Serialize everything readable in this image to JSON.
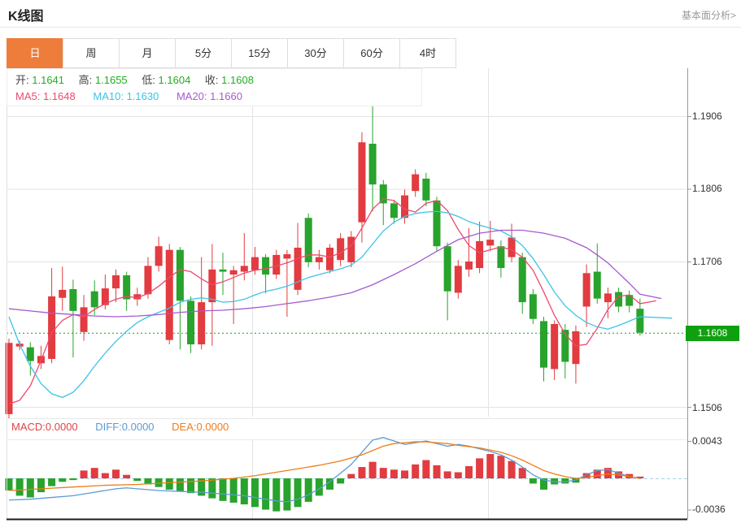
{
  "header": {
    "title": "K线图",
    "link": "基本面分析>"
  },
  "tabs": {
    "items": [
      {
        "label": "日",
        "active": true
      },
      {
        "label": "周",
        "active": false
      },
      {
        "label": "月",
        "active": false
      },
      {
        "label": "5分",
        "active": false
      },
      {
        "label": "15分",
        "active": false
      },
      {
        "label": "30分",
        "active": false
      },
      {
        "label": "60分",
        "active": false
      },
      {
        "label": "4时",
        "active": false
      }
    ]
  },
  "legend": {
    "open_label": "开:",
    "open": "1.1641",
    "high_label": "高:",
    "high": "1.1655",
    "low_label": "低:",
    "low": "1.1604",
    "close_label": "收:",
    "close": "1.1608",
    "ma5_label": "MA5:",
    "ma5": "1.1648",
    "ma10_label": "MA10:",
    "ma10": "1.1630",
    "ma20_label": "MA20:",
    "ma20": "1.1660"
  },
  "macd_legend": {
    "macd": "MACD:0.0000",
    "diff": "DIFF:0.0000",
    "dea": "DEA:0.0000"
  },
  "y_axis": {
    "price_labels": [
      "1.1906",
      "1.1806",
      "1.1706",
      "1.1506"
    ],
    "price_tag": "1.1608",
    "macd_labels": [
      "0.0043",
      "-0.0036"
    ]
  },
  "colors": {
    "up": "#e23b40",
    "down": "#28a32c",
    "tag": "#0fa00f",
    "active_tab": "#ee7d3b",
    "ma5": "#ed4a6e",
    "ma10": "#3ec3e6",
    "ma20": "#a55ad0",
    "diff": "#5b9bd5",
    "dea": "#ef7d17",
    "zero_dash": "#a8d4ea",
    "close_dotted": "#1ca41c"
  },
  "chart_data": {
    "type": "candlestick+macd",
    "title": "K线图",
    "legend_position": "top-left",
    "grid": true,
    "price_axis": {
      "tick_labels": [
        1.1906,
        1.1806,
        1.1706,
        1.1506
      ],
      "last_price": 1.1608,
      "ohlc": {
        "open": 1.1641,
        "high": 1.1655,
        "low": 1.1604,
        "close": 1.1608
      }
    },
    "macd_axis": {
      "max": 0.0043,
      "min": -0.0036,
      "macd": 0.0,
      "diff": 0.0,
      "dea": 0.0
    },
    "candles_ohlc": [
      [
        1.1496,
        1.16,
        1.149,
        1.1594
      ],
      [
        1.1589,
        1.1597,
        1.1584,
        1.1593
      ],
      [
        1.1588,
        1.1595,
        1.1549,
        1.1569
      ],
      [
        1.1566,
        1.159,
        1.1558,
        1.1576
      ],
      [
        1.1572,
        1.1697,
        1.1566,
        1.1658
      ],
      [
        1.1656,
        1.1699,
        1.1638,
        1.1667
      ],
      [
        1.1668,
        1.1681,
        1.1574,
        1.1638
      ],
      [
        1.1609,
        1.166,
        1.1597,
        1.1643
      ],
      [
        1.1665,
        1.168,
        1.1632,
        1.1643
      ],
      [
        1.1646,
        1.1688,
        1.164,
        1.1669
      ],
      [
        1.1669,
        1.1695,
        1.165,
        1.1687
      ],
      [
        1.1687,
        1.1692,
        1.1638,
        1.1654
      ],
      [
        1.1654,
        1.167,
        1.1645,
        1.1661
      ],
      [
        1.1661,
        1.1712,
        1.1655,
        1.17
      ],
      [
        1.17,
        1.174,
        1.1692,
        1.1727
      ],
      [
        1.1598,
        1.173,
        1.1592,
        1.1722
      ],
      [
        1.1722,
        1.1726,
        1.1585,
        1.1652
      ],
      [
        1.1652,
        1.1658,
        1.158,
        1.1592
      ],
      [
        1.1592,
        1.1712,
        1.1585,
        1.165
      ],
      [
        1.165,
        1.173,
        1.159,
        1.1695
      ],
      [
        1.1695,
        1.1718,
        1.166,
        1.1692
      ],
      [
        1.1688,
        1.17,
        1.162,
        1.1694
      ],
      [
        1.1692,
        1.1745,
        1.168,
        1.17
      ],
      [
        1.1694,
        1.1726,
        1.1688,
        1.1712
      ],
      [
        1.1712,
        1.1716,
        1.1662,
        1.1688
      ],
      [
        1.1688,
        1.1722,
        1.1682,
        1.1715
      ],
      [
        1.171,
        1.1722,
        1.163,
        1.1716
      ],
      [
        1.1667,
        1.1759,
        1.166,
        1.1725
      ],
      [
        1.1766,
        1.1772,
        1.1698,
        1.1705
      ],
      [
        1.1705,
        1.1722,
        1.1695,
        1.1712
      ],
      [
        1.1694,
        1.173,
        1.169,
        1.1725
      ],
      [
        1.1708,
        1.1745,
        1.17,
        1.1738
      ],
      [
        1.1705,
        1.1748,
        1.1698,
        1.174
      ],
      [
        1.176,
        1.1884,
        1.1732,
        1.187
      ],
      [
        1.1868,
        1.1921,
        1.1775,
        1.1812
      ],
      [
        1.1812,
        1.1818,
        1.1756,
        1.1786
      ],
      [
        1.1786,
        1.179,
        1.1758,
        1.1766
      ],
      [
        1.1766,
        1.1805,
        1.1758,
        1.1797
      ],
      [
        1.1803,
        1.1833,
        1.1795,
        1.1826
      ],
      [
        1.182,
        1.1828,
        1.1782,
        1.179
      ],
      [
        1.179,
        1.1795,
        1.172,
        1.1727
      ],
      [
        1.1727,
        1.1732,
        1.1625,
        1.1665
      ],
      [
        1.1663,
        1.1708,
        1.1655,
        1.17
      ],
      [
        1.1695,
        1.1752,
        1.1685,
        1.1706
      ],
      [
        1.1697,
        1.1761,
        1.169,
        1.1734
      ],
      [
        1.1728,
        1.1762,
        1.172,
        1.1736
      ],
      [
        1.1727,
        1.1735,
        1.1684,
        1.1697
      ],
      [
        1.1712,
        1.1758,
        1.1705,
        1.1739
      ],
      [
        1.1712,
        1.1718,
        1.1634,
        1.165
      ],
      [
        1.1661,
        1.1668,
        1.162,
        1.1627
      ],
      [
        1.1624,
        1.163,
        1.1541,
        1.156
      ],
      [
        1.1558,
        1.1625,
        1.1543,
        1.162
      ],
      [
        1.1612,
        1.162,
        1.1545,
        1.1568
      ],
      [
        1.1565,
        1.1618,
        1.1538,
        1.161
      ],
      [
        1.1644,
        1.1702,
        1.1616,
        1.169
      ],
      [
        1.1692,
        1.1731,
        1.1648,
        1.1655
      ],
      [
        1.165,
        1.167,
        1.1628,
        1.1662
      ],
      [
        1.1664,
        1.167,
        1.1636,
        1.1644
      ],
      [
        1.166,
        1.1666,
        1.1636,
        1.1645
      ],
      [
        1.1641,
        1.1655,
        1.1604,
        1.1608
      ]
    ],
    "ma5_points": [
      [
        1,
        1.151
      ],
      [
        2,
        1.1515
      ],
      [
        3,
        1.1535
      ],
      [
        4,
        1.157
      ],
      [
        5,
        1.1608
      ],
      [
        6,
        1.1625
      ],
      [
        7,
        1.1633
      ],
      [
        8,
        1.163
      ],
      [
        9,
        1.164
      ],
      [
        10,
        1.1648
      ],
      [
        11,
        1.1654
      ],
      [
        12,
        1.1658
      ],
      [
        13,
        1.1656
      ],
      [
        14,
        1.1662
      ],
      [
        15,
        1.1672
      ],
      [
        16,
        1.1684
      ],
      [
        17,
        1.1695
      ],
      [
        18,
        1.1692
      ],
      [
        19,
        1.1682
      ],
      [
        20,
        1.1674
      ],
      [
        21,
        1.1678
      ],
      [
        22,
        1.1684
      ],
      [
        23,
        1.169
      ],
      [
        24,
        1.1694
      ],
      [
        25,
        1.1696
      ],
      [
        26,
        1.17
      ],
      [
        27,
        1.1704
      ],
      [
        28,
        1.171
      ],
      [
        29,
        1.1715
      ],
      [
        30,
        1.1715
      ],
      [
        31,
        1.1712
      ],
      [
        32,
        1.1718
      ],
      [
        33,
        1.1728
      ],
      [
        34,
        1.1752
      ],
      [
        35,
        1.1778
      ],
      [
        36,
        1.1792
      ],
      [
        37,
        1.179
      ],
      [
        38,
        1.1778
      ],
      [
        39,
        1.1774
      ],
      [
        40,
        1.1786
      ],
      [
        41,
        1.179
      ],
      [
        42,
        1.1776
      ],
      [
        43,
        1.175
      ],
      [
        44,
        1.1728
      ],
      [
        45,
        1.1718
      ],
      [
        46,
        1.1722
      ],
      [
        47,
        1.1726
      ],
      [
        48,
        1.1722
      ],
      [
        49,
        1.1712
      ],
      [
        50,
        1.1694
      ],
      [
        51,
        1.1664
      ],
      [
        52,
        1.1632
      ],
      [
        53,
        1.1606
      ],
      [
        54,
        1.159
      ],
      [
        55,
        1.1592
      ],
      [
        56,
        1.1614
      ],
      [
        57,
        1.164
      ],
      [
        58,
        1.1658
      ],
      [
        59,
        1.166
      ],
      [
        60,
        1.1648
      ],
      [
        61.5,
        1.1652
      ]
    ],
    "ma10_points": [
      [
        1,
        1.163
      ],
      [
        2,
        1.1592
      ],
      [
        3,
        1.1562
      ],
      [
        4,
        1.1538
      ],
      [
        5,
        1.1524
      ],
      [
        6,
        1.1519
      ],
      [
        7,
        1.1526
      ],
      [
        8,
        1.1542
      ],
      [
        9,
        1.1562
      ],
      [
        10,
        1.158
      ],
      [
        11,
        1.1596
      ],
      [
        12,
        1.161
      ],
      [
        13,
        1.1622
      ],
      [
        14,
        1.163
      ],
      [
        15,
        1.1636
      ],
      [
        16,
        1.1642
      ],
      [
        17,
        1.165
      ],
      [
        18,
        1.1654
      ],
      [
        19,
        1.1656
      ],
      [
        20,
        1.1654
      ],
      [
        21,
        1.165
      ],
      [
        22,
        1.1651
      ],
      [
        23,
        1.1654
      ],
      [
        24,
        1.166
      ],
      [
        25,
        1.1665
      ],
      [
        26,
        1.1668
      ],
      [
        27,
        1.1672
      ],
      [
        28,
        1.1678
      ],
      [
        29,
        1.1684
      ],
      [
        30,
        1.1688
      ],
      [
        31,
        1.1692
      ],
      [
        32,
        1.1696
      ],
      [
        33,
        1.1701
      ],
      [
        34,
        1.1712
      ],
      [
        35,
        1.173
      ],
      [
        36,
        1.1748
      ],
      [
        37,
        1.176
      ],
      [
        38,
        1.1768
      ],
      [
        39,
        1.1772
      ],
      [
        40,
        1.1774
      ],
      [
        41,
        1.1775
      ],
      [
        42,
        1.1773
      ],
      [
        43,
        1.1768
      ],
      [
        44,
        1.1761
      ],
      [
        45,
        1.1756
      ],
      [
        46,
        1.1752
      ],
      [
        47,
        1.1748
      ],
      [
        48,
        1.174
      ],
      [
        49,
        1.1728
      ],
      [
        50,
        1.171
      ],
      [
        51,
        1.1688
      ],
      [
        52,
        1.1664
      ],
      [
        53,
        1.1645
      ],
      [
        54,
        1.1632
      ],
      [
        55,
        1.1622
      ],
      [
        56,
        1.1616
      ],
      [
        57,
        1.1613
      ],
      [
        58,
        1.1618
      ],
      [
        59,
        1.1624
      ],
      [
        60,
        1.163
      ],
      [
        63,
        1.1628
      ]
    ],
    "ma20_points": [
      [
        1,
        1.1641
      ],
      [
        3,
        1.1638
      ],
      [
        5,
        1.1635
      ],
      [
        7,
        1.1633
      ],
      [
        9,
        1.1631
      ],
      [
        11,
        1.163
      ],
      [
        13,
        1.1631
      ],
      [
        15,
        1.1633
      ],
      [
        17,
        1.1636
      ],
      [
        19,
        1.1638
      ],
      [
        21,
        1.1639
      ],
      [
        23,
        1.1641
      ],
      [
        25,
        1.1644
      ],
      [
        27,
        1.1648
      ],
      [
        29,
        1.1652
      ],
      [
        31,
        1.1657
      ],
      [
        33,
        1.1663
      ],
      [
        35,
        1.1674
      ],
      [
        37,
        1.1688
      ],
      [
        39,
        1.1703
      ],
      [
        41,
        1.172
      ],
      [
        43,
        1.1736
      ],
      [
        45,
        1.1745
      ],
      [
        47,
        1.1749
      ],
      [
        49,
        1.1749
      ],
      [
        51,
        1.1745
      ],
      [
        53,
        1.1738
      ],
      [
        55,
        1.1725
      ],
      [
        56,
        1.1715
      ],
      [
        57,
        1.1704
      ],
      [
        58,
        1.169
      ],
      [
        59,
        1.1676
      ],
      [
        60,
        1.1661
      ],
      [
        62,
        1.1655
      ]
    ],
    "macd_histogram": [
      -0.0014,
      -0.002,
      -0.0022,
      -0.0016,
      -0.0009,
      -0.0004,
      -0.0002,
      0.0009,
      0.0012,
      0.0006,
      0.001,
      0.0004,
      -0.0003,
      -0.0007,
      -0.001,
      -0.0013,
      -0.0015,
      -0.0017,
      -0.002,
      -0.0023,
      -0.0026,
      -0.0028,
      -0.003,
      -0.0033,
      -0.0036,
      -0.0038,
      -0.0037,
      -0.0033,
      -0.0027,
      -0.002,
      -0.0013,
      -0.0006,
      0.0005,
      0.0013,
      0.0019,
      0.0012,
      0.001,
      0.0009,
      0.0016,
      0.0021,
      0.0015,
      0.0008,
      0.0007,
      0.0014,
      0.0023,
      0.0028,
      0.0026,
      0.002,
      0.0012,
      -0.0006,
      -0.0013,
      -0.0007,
      -0.0006,
      -0.0005,
      0.0006,
      0.001,
      0.0012,
      0.0008,
      0.0005,
      0.0002
    ],
    "diff_points": [
      [
        1,
        -0.0025
      ],
      [
        3,
        -0.0024
      ],
      [
        5,
        -0.0022
      ],
      [
        7,
        -0.002
      ],
      [
        9,
        -0.0016
      ],
      [
        11,
        -0.0012
      ],
      [
        12,
        -0.0011
      ],
      [
        13,
        -0.0012
      ],
      [
        15,
        -0.0014
      ],
      [
        17,
        -0.0015
      ],
      [
        19,
        -0.0016
      ],
      [
        21,
        -0.0018
      ],
      [
        23,
        -0.002
      ],
      [
        25,
        -0.0024
      ],
      [
        26,
        -0.0026
      ],
      [
        27,
        -0.0027
      ],
      [
        28,
        -0.0024
      ],
      [
        29,
        -0.0019
      ],
      [
        30,
        -0.0012
      ],
      [
        31,
        -0.0004
      ],
      [
        32,
        0.0006
      ],
      [
        33,
        0.0016
      ],
      [
        34,
        0.003
      ],
      [
        35,
        0.0044
      ],
      [
        36,
        0.0047
      ],
      [
        37,
        0.0043
      ],
      [
        38,
        0.0039
      ],
      [
        39,
        0.0041
      ],
      [
        40,
        0.0043
      ],
      [
        41,
        0.004
      ],
      [
        42,
        0.0037
      ],
      [
        43,
        0.0039
      ],
      [
        44,
        0.0037
      ],
      [
        45,
        0.0034
      ],
      [
        46,
        0.0031
      ],
      [
        47,
        0.0027
      ],
      [
        48,
        0.0021
      ],
      [
        49,
        0.0013
      ],
      [
        50,
        0.0004
      ],
      [
        51,
        -0.0002
      ],
      [
        52,
        -0.0004
      ],
      [
        53,
        -0.0004
      ],
      [
        54,
        -0.0002
      ],
      [
        55,
        0.0004
      ],
      [
        56,
        0.0009
      ],
      [
        57,
        0.001
      ],
      [
        58,
        0.0006
      ],
      [
        59,
        0.0002
      ],
      [
        60,
        0.0
      ]
    ],
    "dea_points": [
      [
        1,
        -0.0014
      ],
      [
        4,
        -0.0012
      ],
      [
        7,
        -0.001
      ],
      [
        10,
        -0.0008
      ],
      [
        13,
        -0.0007
      ],
      [
        16,
        -0.0005
      ],
      [
        19,
        -0.0003
      ],
      [
        22,
        0.0
      ],
      [
        24,
        0.0003
      ],
      [
        26,
        0.0007
      ],
      [
        28,
        0.0011
      ],
      [
        30,
        0.0015
      ],
      [
        32,
        0.002
      ],
      [
        34,
        0.0027
      ],
      [
        35,
        0.0032
      ],
      [
        36,
        0.0037
      ],
      [
        37,
        0.004
      ],
      [
        38,
        0.0041
      ],
      [
        39,
        0.0042
      ],
      [
        40,
        0.0042
      ],
      [
        41,
        0.0041
      ],
      [
        42,
        0.004
      ],
      [
        43,
        0.0038
      ],
      [
        45,
        0.0035
      ],
      [
        47,
        0.003
      ],
      [
        48,
        0.0026
      ],
      [
        49,
        0.0021
      ],
      [
        50,
        0.0015
      ],
      [
        51,
        0.0009
      ],
      [
        52,
        0.0005
      ],
      [
        53,
        0.0002
      ],
      [
        54,
        0.0
      ],
      [
        55,
        0.0001
      ],
      [
        56,
        0.0003
      ],
      [
        57,
        0.0005
      ],
      [
        58,
        0.0004
      ],
      [
        59,
        0.0002
      ],
      [
        60,
        0.0
      ]
    ]
  }
}
